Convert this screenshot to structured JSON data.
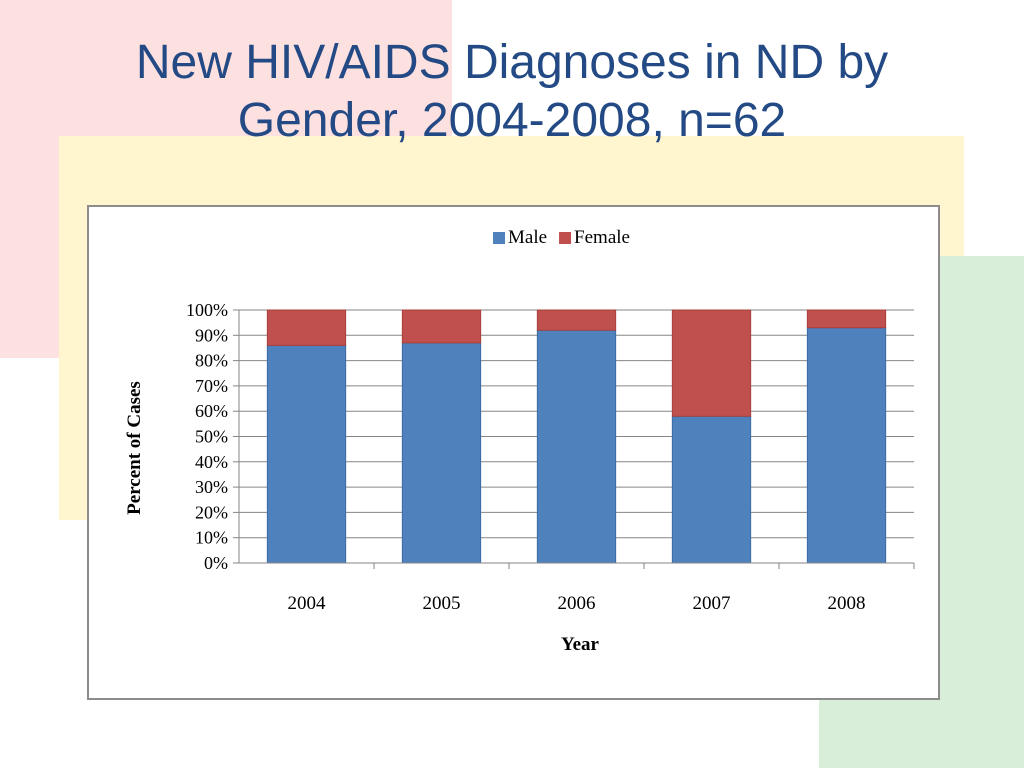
{
  "slide": {
    "title_line1": "New HIV/AIDS Diagnoses in ND by",
    "title_line2": "Gender, 2004-2008, n=62"
  },
  "colors": {
    "background_pink": "#fde0e0",
    "background_yellow": "#fff6cf",
    "background_green": "#d9eed8",
    "title": "#234a84",
    "male": "#4f81bd",
    "female": "#c0504d"
  },
  "chart_data": {
    "type": "bar",
    "stacked": true,
    "title": "",
    "xlabel": "Year",
    "ylabel": "Percent of Cases",
    "categories": [
      "2004",
      "2005",
      "2006",
      "2007",
      "2008"
    ],
    "series": [
      {
        "name": "Male",
        "color": "#4f81bd",
        "values": [
          86,
          87,
          92,
          58,
          93
        ]
      },
      {
        "name": "Female",
        "color": "#c0504d",
        "values": [
          14,
          13,
          8,
          42,
          7
        ]
      }
    ],
    "ylim": [
      0,
      100
    ],
    "yticks": [
      "0%",
      "10%",
      "20%",
      "30%",
      "40%",
      "50%",
      "60%",
      "70%",
      "80%",
      "90%",
      "100%"
    ],
    "grid": true,
    "legend": "top"
  }
}
